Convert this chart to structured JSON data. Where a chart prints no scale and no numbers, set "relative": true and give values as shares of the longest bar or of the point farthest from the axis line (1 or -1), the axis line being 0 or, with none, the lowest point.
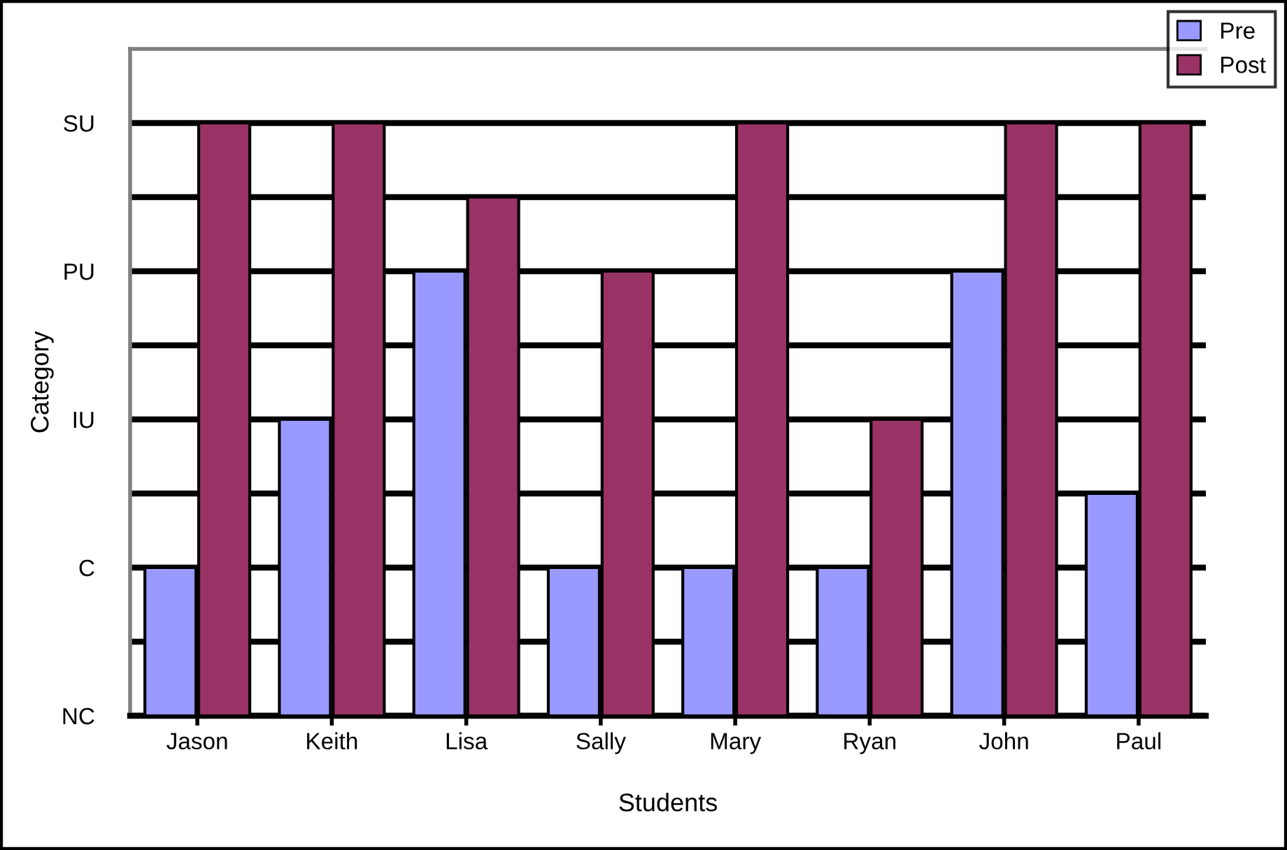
{
  "chart_data": {
    "type": "bar",
    "xlabel": "Students",
    "ylabel": "Category",
    "relative": true,
    "categories": [
      "Jason",
      "Keith",
      "Lisa",
      "Sally",
      "Mary",
      "Ryan",
      "John",
      "Paul"
    ],
    "series": [
      {
        "name": "Pre",
        "color": "#9999ff",
        "values": [
          0.25,
          0.5,
          0.75,
          0.25,
          0.25,
          0.25,
          0.75,
          0.375
        ]
      },
      {
        "name": "Post",
        "color": "#993366",
        "values": [
          1,
          1,
          0.875,
          0.75,
          1,
          0.5,
          1,
          1
        ]
      }
    ],
    "annotations": [
      "NC",
      "C",
      "IU",
      "PU",
      "SU"
    ],
    "grid": "y",
    "legend": "top right"
  }
}
